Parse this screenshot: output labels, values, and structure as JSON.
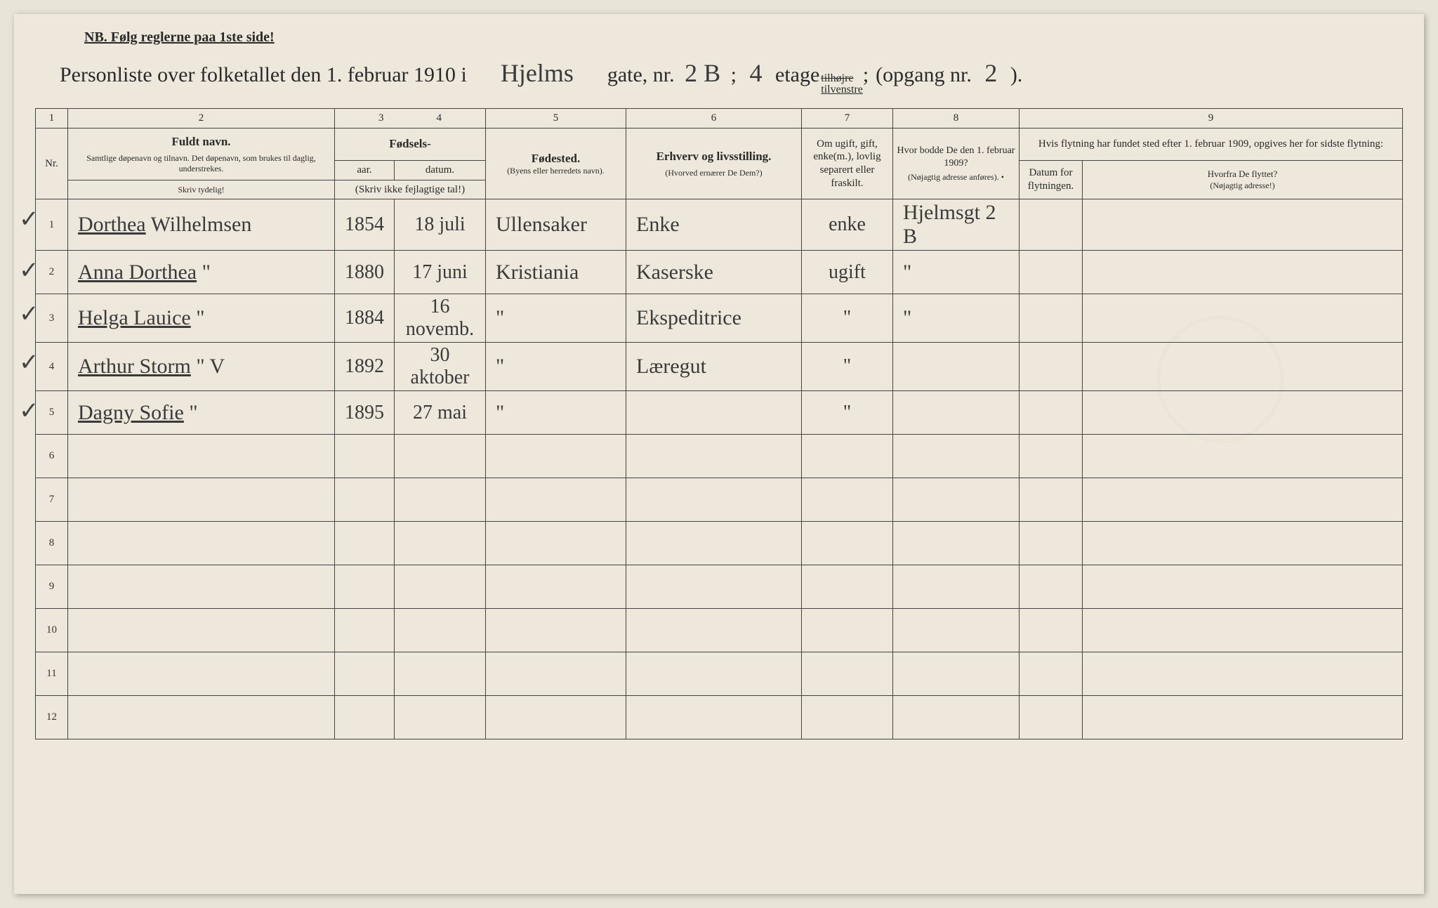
{
  "nb_text": "NB.  Følg reglerne paa 1ste side!",
  "title": {
    "prefix": "Personliste over folketallet den 1. februar 1910 i",
    "street": "Hjelms",
    "gate_label": "gate, nr.",
    "gate_nr": "2 B",
    "semicolon": ";",
    "etage_val": "4",
    "etage_label": "etage",
    "side_strike": "tilhøjre",
    "side_under": "tilvenstre",
    "side_semicolon": ";",
    "opgang_label": "(opgang nr.",
    "opgang_val": "2",
    "opgang_close": ")."
  },
  "colnums": [
    "1",
    "2",
    "3",
    "4",
    "5",
    "6",
    "7",
    "8",
    "9"
  ],
  "headers": {
    "nr": "Nr.",
    "fuldt_navn": "Fuldt navn.",
    "fuldt_sub": "Samtlige døpenavn og tilnavn.  Det døpenavn, som brukes til daglig, understrekes.",
    "fodsels": "Fødsels-",
    "aar": "aar.",
    "datum": "datum.",
    "fodsels_note": "(Skriv ikke fejlagtige tal!)",
    "fodested": "Fødested.",
    "fodested_sub": "(Byens eller herredets navn).",
    "erhverv": "Erhverv og livsstilling.",
    "erhverv_sub": "(Hvorved ernærer De Dem?)",
    "ugift": "Om ugift, gift, enke(m.), lovlig separert eller fraskilt.",
    "hvor_bodde": "Hvor bodde De den 1. februar 1909?",
    "hvor_sub": "(Nøjagtig adresse anføres).   •",
    "flytning_top": "Hvis flytning har fundet sted efter 1. februar 1909, opgives her for sidste flytning:",
    "flytning_date": "Datum for flytningen.",
    "flytning_from": "Hvorfra De flyttet?",
    "flytning_from_sub": "(Nøjagtig adresse!)",
    "skriv_tydelig": "Skriv tydelig!"
  },
  "rows": [
    {
      "n": "1",
      "check": "✓",
      "name_u": "Dorthea",
      "name_rest": " Wilhelmsen",
      "year": "1854",
      "date": "18 juli",
      "place": "Ullensaker",
      "occ": "Enke",
      "marital": "enke",
      "addr": "Hjelmsgt 2 B",
      "md": "",
      "mf": ""
    },
    {
      "n": "2",
      "check": "✓",
      "name_u": "Anna Dorthea",
      "name_rest": "      \"",
      "year": "1880",
      "date": "17 juni",
      "place": "Kristiania",
      "occ": "Kaserske",
      "marital": "ugift",
      "addr": "\"",
      "md": "",
      "mf": ""
    },
    {
      "n": "3",
      "check": "✓",
      "name_u": "Helga Lauice",
      "name_rest": "      \"",
      "year": "1884",
      "date": "16 novemb.",
      "place": "\"",
      "occ": "Ekspeditrice",
      "marital": "\"",
      "addr": "\"",
      "md": "",
      "mf": ""
    },
    {
      "n": "4",
      "check": "✓",
      "name_u": "Arthur Storm",
      "name_rest": "     \"    V",
      "year": "1892",
      "date": "30 aktober",
      "place": "\"",
      "occ": "Læregut",
      "marital": "\"",
      "addr": "",
      "md": "",
      "mf": ""
    },
    {
      "n": "5",
      "check": "✓",
      "name_u": "Dagny Sofie",
      "name_rest": "      \"",
      "year": "1895",
      "date": "27 mai",
      "place": "\"",
      "occ": "",
      "marital": "\"",
      "addr": "",
      "md": "",
      "mf": ""
    },
    {
      "n": "6",
      "check": "",
      "name_u": "",
      "name_rest": "",
      "year": "",
      "date": "",
      "place": "",
      "occ": "",
      "marital": "",
      "addr": "",
      "md": "",
      "mf": ""
    },
    {
      "n": "7",
      "check": "",
      "name_u": "",
      "name_rest": "",
      "year": "",
      "date": "",
      "place": "",
      "occ": "",
      "marital": "",
      "addr": "",
      "md": "",
      "mf": ""
    },
    {
      "n": "8",
      "check": "",
      "name_u": "",
      "name_rest": "",
      "year": "",
      "date": "",
      "place": "",
      "occ": "",
      "marital": "",
      "addr": "",
      "md": "",
      "mf": ""
    },
    {
      "n": "9",
      "check": "",
      "name_u": "",
      "name_rest": "",
      "year": "",
      "date": "",
      "place": "",
      "occ": "",
      "marital": "",
      "addr": "",
      "md": "",
      "mf": ""
    },
    {
      "n": "10",
      "check": "",
      "name_u": "",
      "name_rest": "",
      "year": "",
      "date": "",
      "place": "",
      "occ": "",
      "marital": "",
      "addr": "",
      "md": "",
      "mf": ""
    },
    {
      "n": "11",
      "check": "",
      "name_u": "",
      "name_rest": "",
      "year": "",
      "date": "",
      "place": "",
      "occ": "",
      "marital": "",
      "addr": "",
      "md": "",
      "mf": ""
    },
    {
      "n": "12",
      "check": "",
      "name_u": "",
      "name_rest": "",
      "year": "",
      "date": "",
      "place": "",
      "occ": "",
      "marital": "",
      "addr": "",
      "md": "",
      "mf": ""
    }
  ],
  "colors": {
    "paper": "#ede8db",
    "ink_printed": "#2a2a2a",
    "ink_handwriting": "#3a3a3a",
    "border": "#444"
  }
}
